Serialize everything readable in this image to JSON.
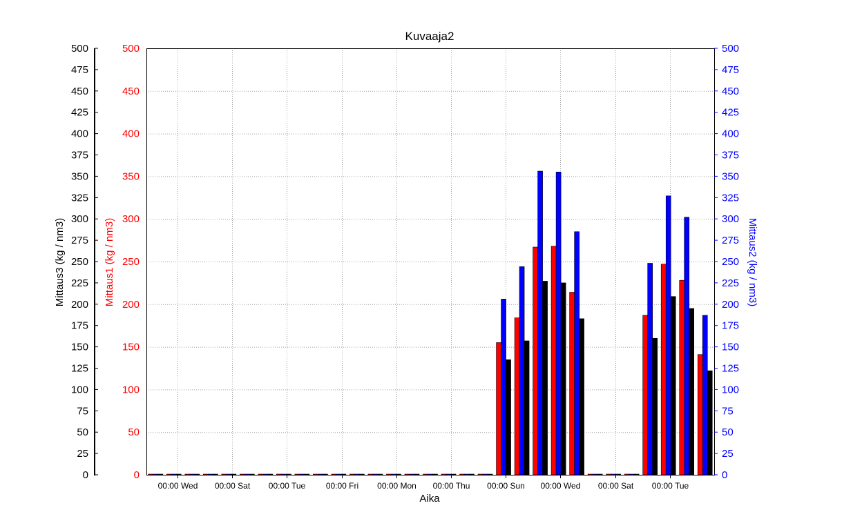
{
  "chart_data": {
    "type": "bar",
    "title": "Kuvaaja2",
    "xlabel": "Aika",
    "x_ticks": [
      "00:00 Wed",
      "00:00 Sat",
      "00:00 Tue",
      "00:00 Fri",
      "00:00 Mon",
      "00:00 Thu",
      "00:00 Sun",
      "00:00 Wed",
      "00:00 Sat",
      "00:00 Tue"
    ],
    "axes": {
      "left_outer": {
        "label": "Mittaus3    (kg / nm3)",
        "ylim": [
          0,
          500
        ],
        "major_step": 25,
        "color": "#000000"
      },
      "left_inner": {
        "label": "Mittaus1    (kg / nm3)",
        "ylim": [
          0,
          500
        ],
        "major_step": 50,
        "color": "#ff0000"
      },
      "right": {
        "label": "Mittaus2    (kg / nm3)",
        "ylim": [
          0,
          500
        ],
        "major_step": 25,
        "color": "#0000ff"
      }
    },
    "grid": true,
    "series": [
      {
        "name": "Mittaus1",
        "color": "#ff0000",
        "values": [
          0,
          0,
          0,
          0,
          0,
          0,
          0,
          0,
          0,
          0,
          0,
          0,
          0,
          0,
          0,
          0,
          0,
          0,
          0,
          155,
          184,
          267,
          268,
          214,
          0,
          0,
          0,
          187,
          247,
          228,
          141
        ]
      },
      {
        "name": "Mittaus2",
        "color": "#0000ff",
        "values": [
          0,
          0,
          0,
          0,
          0,
          0,
          0,
          0,
          0,
          0,
          0,
          0,
          0,
          0,
          0,
          0,
          0,
          0,
          0,
          206,
          244,
          356,
          355,
          285,
          0,
          0,
          0,
          248,
          327,
          302,
          187
        ]
      },
      {
        "name": "Mittaus3",
        "color": "#000000",
        "values": [
          0,
          0,
          0,
          0,
          0,
          0,
          0,
          0,
          0,
          0,
          0,
          0,
          0,
          0,
          0,
          0,
          0,
          0,
          0,
          135,
          157,
          227,
          225,
          183,
          0,
          0,
          0,
          160,
          209,
          195,
          122
        ]
      }
    ]
  }
}
